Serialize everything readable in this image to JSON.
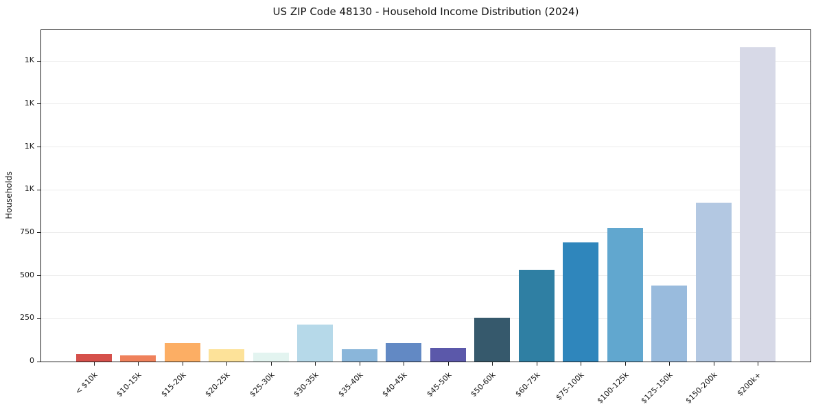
{
  "chart_data": {
    "type": "bar",
    "title": "US ZIP Code 48130 - Household Income Distribution (2024)",
    "xlabel": "",
    "ylabel": "Households",
    "categories": [
      "< $10k",
      "$10-15k",
      "$15-20k",
      "$20-25k",
      "$25-30k",
      "$30-35k",
      "$35-40k",
      "$40-45k",
      "$45-50k",
      "$50-60k",
      "$60-75k",
      "$75-100k",
      "$100-125k",
      "$125-150k",
      "$150-200k",
      "$200k+"
    ],
    "values": [
      43,
      37,
      108,
      71,
      50,
      214,
      71,
      106,
      79,
      254,
      533,
      692,
      776,
      443,
      926,
      1830
    ],
    "bar_colors": [
      "#d5504b",
      "#ef815b",
      "#fcae64",
      "#fde299",
      "#e3f4f0",
      "#b6d9e9",
      "#8ab6da",
      "#6289c4",
      "#5b58aa",
      "#36596c",
      "#2f7fa3",
      "#2f86bc",
      "#61a7cf",
      "#99bbdd",
      "#b3c8e2",
      "#d7d9e7"
    ],
    "ylim": [
      0,
      1930
    ],
    "yticks": [
      {
        "value": 0,
        "label": "0"
      },
      {
        "value": 250,
        "label": "250"
      },
      {
        "value": 500,
        "label": "500"
      },
      {
        "value": 750,
        "label": "750"
      },
      {
        "value": 1000,
        "label": "1K"
      },
      {
        "value": 1250,
        "label": "1K"
      },
      {
        "value": 1500,
        "label": "1K"
      },
      {
        "value": 1750,
        "label": "1K"
      }
    ],
    "grid": "horizontal",
    "legend": "none",
    "colors": {
      "background": "#ffffff",
      "spine": "#1a1a1a",
      "gridline": "#ececec",
      "text": "#151515"
    }
  }
}
